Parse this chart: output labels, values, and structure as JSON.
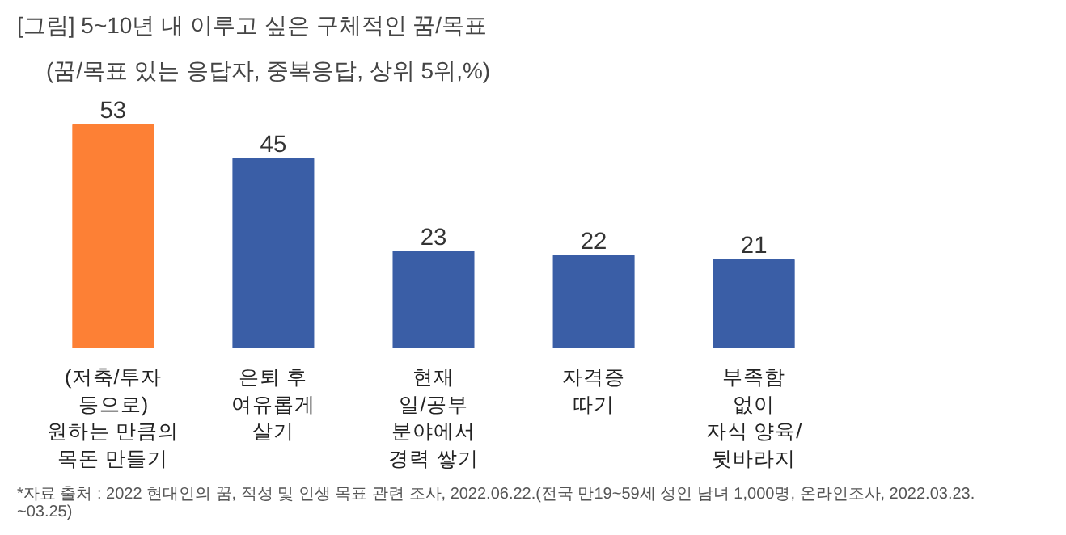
{
  "chart_data": {
    "type": "bar",
    "title": "[그림] 5~10년 내 이루고 싶은 구체적인 꿈/목표",
    "subtitle": "(꿈/목표 있는 응답자, 중복응답, 상위 5위,%)",
    "categories": [
      "(저축/투자\n등으로)\n원하는 만큼의\n목돈 만들기",
      "은퇴 후\n여유롭게\n살기",
      "현재\n일/공부\n분야에서\n경력 쌓기",
      "자격증\n따기",
      "부족함\n없이\n자식 양육/\n뒷바라지"
    ],
    "values": [
      53,
      45,
      23,
      22,
      21
    ],
    "colors": [
      "#fd8035",
      "#3a5ea6",
      "#3a5ea6",
      "#3a5ea6",
      "#3a5ea6"
    ],
    "data_labels": true,
    "grid": false,
    "annotations": [
      "*자료 출처 : 2022 현대인의 꿈, 적성 및 인생 목표 관련 조사, 2022.06.22.(전국 만19~59세 성인 남녀 1,000명, 온라인조사, 2022.03.23.\n~03.25)"
    ]
  }
}
